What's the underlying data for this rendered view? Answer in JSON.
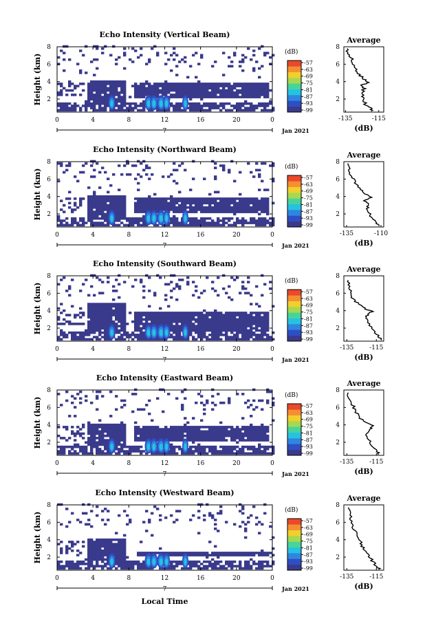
{
  "colors": {
    "scale": [
      "#3a3a8c",
      "#2e4fc4",
      "#2f86df",
      "#26c2e0",
      "#47d49a",
      "#a6d850",
      "#f2cf2c",
      "#f48f32",
      "#ea4a2b"
    ],
    "background": "#ffffff",
    "line": "#000000"
  },
  "x_axis": {
    "ticks": [
      "0",
      "4",
      "8",
      "12",
      "16",
      "20",
      "0"
    ],
    "day": "7",
    "date": "Jan 2021",
    "label": "Local Time"
  },
  "colorbar": {
    "unit": "(dB)",
    "ticks": [
      "-57",
      "-63",
      "-69",
      "-75",
      "-81",
      "-87",
      "-93",
      "-99"
    ]
  },
  "chart_data": [
    {
      "type": "heatmap",
      "title": "Echo Intensity (Vertical Beam)",
      "ylabel": "Height (km)",
      "y_ticks": [
        "8",
        "6",
        "4",
        "2"
      ],
      "ylim": [
        0.5,
        8
      ],
      "xlim": [
        0,
        24
      ],
      "beam": "vertical",
      "average": {
        "title": "Average",
        "xlabel": "(dB)",
        "x_ticks": [
          "-135",
          "-115"
        ],
        "y_ticks": [
          "8",
          "6",
          "4",
          "2"
        ],
        "xlim": [
          -136,
          -112
        ],
        "profile": [
          [
            -119,
            0.6
          ],
          [
            -120,
            1.0
          ],
          [
            -123,
            1.4
          ],
          [
            -124,
            2.0
          ],
          [
            -125,
            2.6
          ],
          [
            -124,
            3.2
          ],
          [
            -126,
            3.6
          ],
          [
            -121,
            3.9
          ],
          [
            -124,
            4.3
          ],
          [
            -127,
            4.8
          ],
          [
            -129,
            5.4
          ],
          [
            -130,
            6.0
          ],
          [
            -131,
            6.6
          ],
          [
            -133,
            7.2
          ],
          [
            -134,
            7.8
          ]
        ]
      }
    },
    {
      "type": "heatmap",
      "title": "Echo Intensity (Northward Beam)",
      "ylabel": "Height (km)",
      "y_ticks": [
        "8",
        "6",
        "4",
        "2"
      ],
      "ylim": [
        0.5,
        8
      ],
      "xlim": [
        0,
        24
      ],
      "beam": "northward",
      "average": {
        "title": "Average",
        "xlabel": "(dB)",
        "x_ticks": [
          "-135",
          "-110"
        ],
        "y_ticks": [
          "8",
          "6",
          "4",
          "2"
        ],
        "xlim": [
          -137,
          -108
        ],
        "profile": [
          [
            -111,
            0.6
          ],
          [
            -113,
            1.0
          ],
          [
            -117,
            1.5
          ],
          [
            -118,
            2.0
          ],
          [
            -120,
            2.6
          ],
          [
            -119,
            3.1
          ],
          [
            -122,
            3.5
          ],
          [
            -117,
            3.9
          ],
          [
            -121,
            4.3
          ],
          [
            -125,
            4.8
          ],
          [
            -128,
            5.4
          ],
          [
            -130,
            6.0
          ],
          [
            -132,
            6.6
          ],
          [
            -133,
            7.2
          ],
          [
            -134,
            7.8
          ]
        ]
      }
    },
    {
      "type": "heatmap",
      "title": "Echo Intensity (Southward Beam)",
      "ylabel": "Height (km)",
      "y_ticks": [
        "8",
        "6",
        "4",
        "2"
      ],
      "ylim": [
        0.5,
        8
      ],
      "xlim": [
        0,
        24
      ],
      "beam": "southward",
      "average": {
        "title": "Average",
        "xlabel": "(dB)",
        "x_ticks": [
          "-135",
          "-115"
        ],
        "y_ticks": [
          "8",
          "6",
          "4",
          "2"
        ],
        "xlim": [
          -137,
          -110
        ],
        "profile": [
          [
            -111,
            0.6
          ],
          [
            -113,
            1.0
          ],
          [
            -116,
            1.6
          ],
          [
            -119,
            2.3
          ],
          [
            -122,
            3.0
          ],
          [
            -121,
            3.5
          ],
          [
            -118,
            3.9
          ],
          [
            -123,
            4.3
          ],
          [
            -128,
            4.9
          ],
          [
            -131,
            5.5
          ],
          [
            -132,
            6.1
          ],
          [
            -133,
            6.8
          ],
          [
            -134,
            7.5
          ]
        ]
      }
    },
    {
      "type": "heatmap",
      "title": "Echo Intensity (Eastward Beam)",
      "ylabel": "Height (km)",
      "y_ticks": [
        "8",
        "6",
        "4",
        "2"
      ],
      "ylim": [
        0.5,
        8
      ],
      "xlim": [
        0,
        24
      ],
      "beam": "eastward",
      "average": {
        "title": "Average",
        "xlabel": "(dB)",
        "x_ticks": [
          "-135",
          "-115"
        ],
        "y_ticks": [
          "8",
          "6",
          "4",
          "2"
        ],
        "xlim": [
          -137,
          -110
        ],
        "profile": [
          [
            -113,
            0.6
          ],
          [
            -115,
            1.0
          ],
          [
            -118,
            1.6
          ],
          [
            -120,
            2.3
          ],
          [
            -122,
            3.0
          ],
          [
            -119,
            3.5
          ],
          [
            -117,
            3.9
          ],
          [
            -123,
            4.3
          ],
          [
            -127,
            4.9
          ],
          [
            -129,
            5.6
          ],
          [
            -131,
            6.3
          ],
          [
            -133,
            7.0
          ],
          [
            -134,
            7.7
          ]
        ]
      }
    },
    {
      "type": "heatmap",
      "title": "Echo Intensity (Westward Beam)",
      "ylabel": "Height (km)",
      "y_ticks": [
        "8",
        "6",
        "4",
        "2"
      ],
      "ylim": [
        0.5,
        8
      ],
      "xlim": [
        0,
        24
      ],
      "beam": "westward",
      "average": {
        "title": "Average",
        "xlabel": "(dB)",
        "x_ticks": [
          "-135",
          "-115"
        ],
        "y_ticks": [
          "8",
          "6",
          "4",
          "2"
        ],
        "xlim": [
          -137,
          -110
        ],
        "profile": [
          [
            -113,
            0.6
          ],
          [
            -115,
            1.0
          ],
          [
            -118,
            1.6
          ],
          [
            -120,
            2.2
          ],
          [
            -123,
            2.8
          ],
          [
            -125,
            3.4
          ],
          [
            -126,
            4.0
          ],
          [
            -129,
            4.8
          ],
          [
            -131,
            5.6
          ],
          [
            -132,
            6.3
          ],
          [
            -133,
            7.0
          ],
          [
            -134,
            7.7
          ]
        ]
      }
    }
  ]
}
